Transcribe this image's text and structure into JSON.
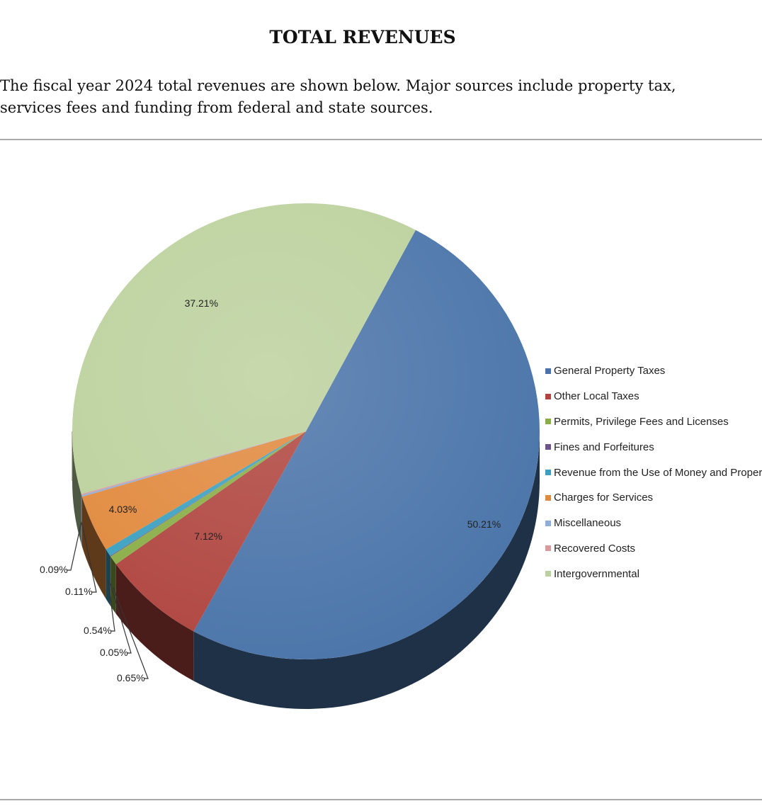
{
  "page": {
    "title": "TOTAL REVENUES",
    "intro_line1": "The fiscal year 2024 total revenues are shown below. Major sources include property tax,",
    "intro_line2": "services fees and funding from federal and state sources."
  },
  "chart_data": {
    "type": "pie",
    "title": "",
    "style": "3d",
    "legend_position": "right",
    "slices": [
      {
        "name": "General Property Taxes",
        "value": 50.21,
        "label": "50.21%",
        "color": "#4a74a9"
      },
      {
        "name": "Other Local Taxes",
        "value": 7.12,
        "label": "7.12%",
        "color": "#b0453f"
      },
      {
        "name": "Permits, Privilege Fees and Licenses",
        "value": 0.65,
        "label": "0.65%",
        "color": "#8aad46"
      },
      {
        "name": "Fines and Forfeitures",
        "value": 0.05,
        "label": "0.05%",
        "color": "#6c538b"
      },
      {
        "name": "Revenue from the Use of Money and Property",
        "value": 0.54,
        "label": "0.54%",
        "color": "#3ba0c0"
      },
      {
        "name": "Charges for Services",
        "value": 4.03,
        "label": "4.03%",
        "color": "#e1893d"
      },
      {
        "name": "Miscellaneous",
        "value": 0.11,
        "label": "0.11%",
        "color": "#8daed8"
      },
      {
        "name": "Recovered Costs",
        "value": 0.09,
        "label": "0.09%",
        "color": "#d99a9d"
      },
      {
        "name": "Intergovernmental",
        "value": 37.21,
        "label": "37.21%",
        "color": "#bcd19d"
      }
    ]
  }
}
